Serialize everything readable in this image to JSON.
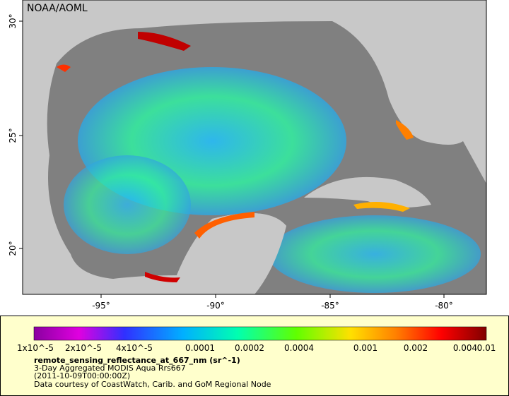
{
  "map": {
    "credit": "NOAA/AOML",
    "lon_ticks": [
      "-95°",
      "-90°",
      "-85°",
      "-80°"
    ],
    "lat_ticks": [
      "30°",
      "25°",
      "20°"
    ]
  },
  "colorbar": {
    "labels": [
      "1x10^-5",
      "2x10^-5",
      "4x10^-5",
      "0.0001",
      "0.0002",
      "0.0004",
      "0.001",
      "0.002",
      "0.004",
      "0.01"
    ]
  },
  "caption": {
    "variable": "remote_sensing_reflectance_at_667_nm (sr^-1)",
    "product": "3-Day Aggregated MODIS Aqua Rrs667",
    "time": "(2011-10-09T00:00:00Z)",
    "source": "Data courtesy of CoastWatch, Carib. and GoM Regional Node"
  }
}
